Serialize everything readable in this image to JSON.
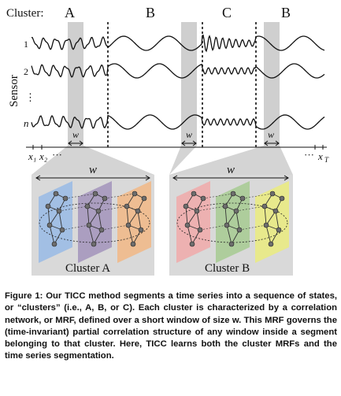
{
  "figure": {
    "cluster_label": "Cluster:",
    "segments": [
      {
        "label": "A"
      },
      {
        "label": "B"
      },
      {
        "label": "C"
      },
      {
        "label": "B"
      }
    ],
    "sensor_axis_label": "Sensor",
    "sensor_labels": [
      "1",
      "2",
      "⋮",
      "n"
    ],
    "window_symbol": "w",
    "time_axis": {
      "start_labels": [
        "x₁",
        "x₂",
        "···"
      ],
      "end_labels": [
        "···",
        "x",
        "T"
      ]
    },
    "panels": [
      {
        "label": "Cluster A",
        "window_label": "w",
        "colors": [
          "#9bbbe4",
          "#a597bd",
          "#f0b98a"
        ]
      },
      {
        "label": "Cluster B",
        "window_label": "w",
        "colors": [
          "#eeacac",
          "#a8cb95",
          "#e9ea83"
        ]
      }
    ]
  },
  "caption": {
    "label": "Figure 1:",
    "text": " Our TICC method segments a time series into a sequence of states, or “clusters” (i.e., A, B, or C). Each cluster is characterized by a correlation network, or MRF, defined over a short window of size w. This MRF governs the (time-invariant) partial correlation structure of any window inside a segment belonging to that cluster. Here, TICC learns both the cluster MRFs and the time series segmentation."
  },
  "colors": {
    "window_band": "#cfcfcf",
    "panel_bg": "#d9d9d9",
    "node": "#6d6d6d"
  }
}
